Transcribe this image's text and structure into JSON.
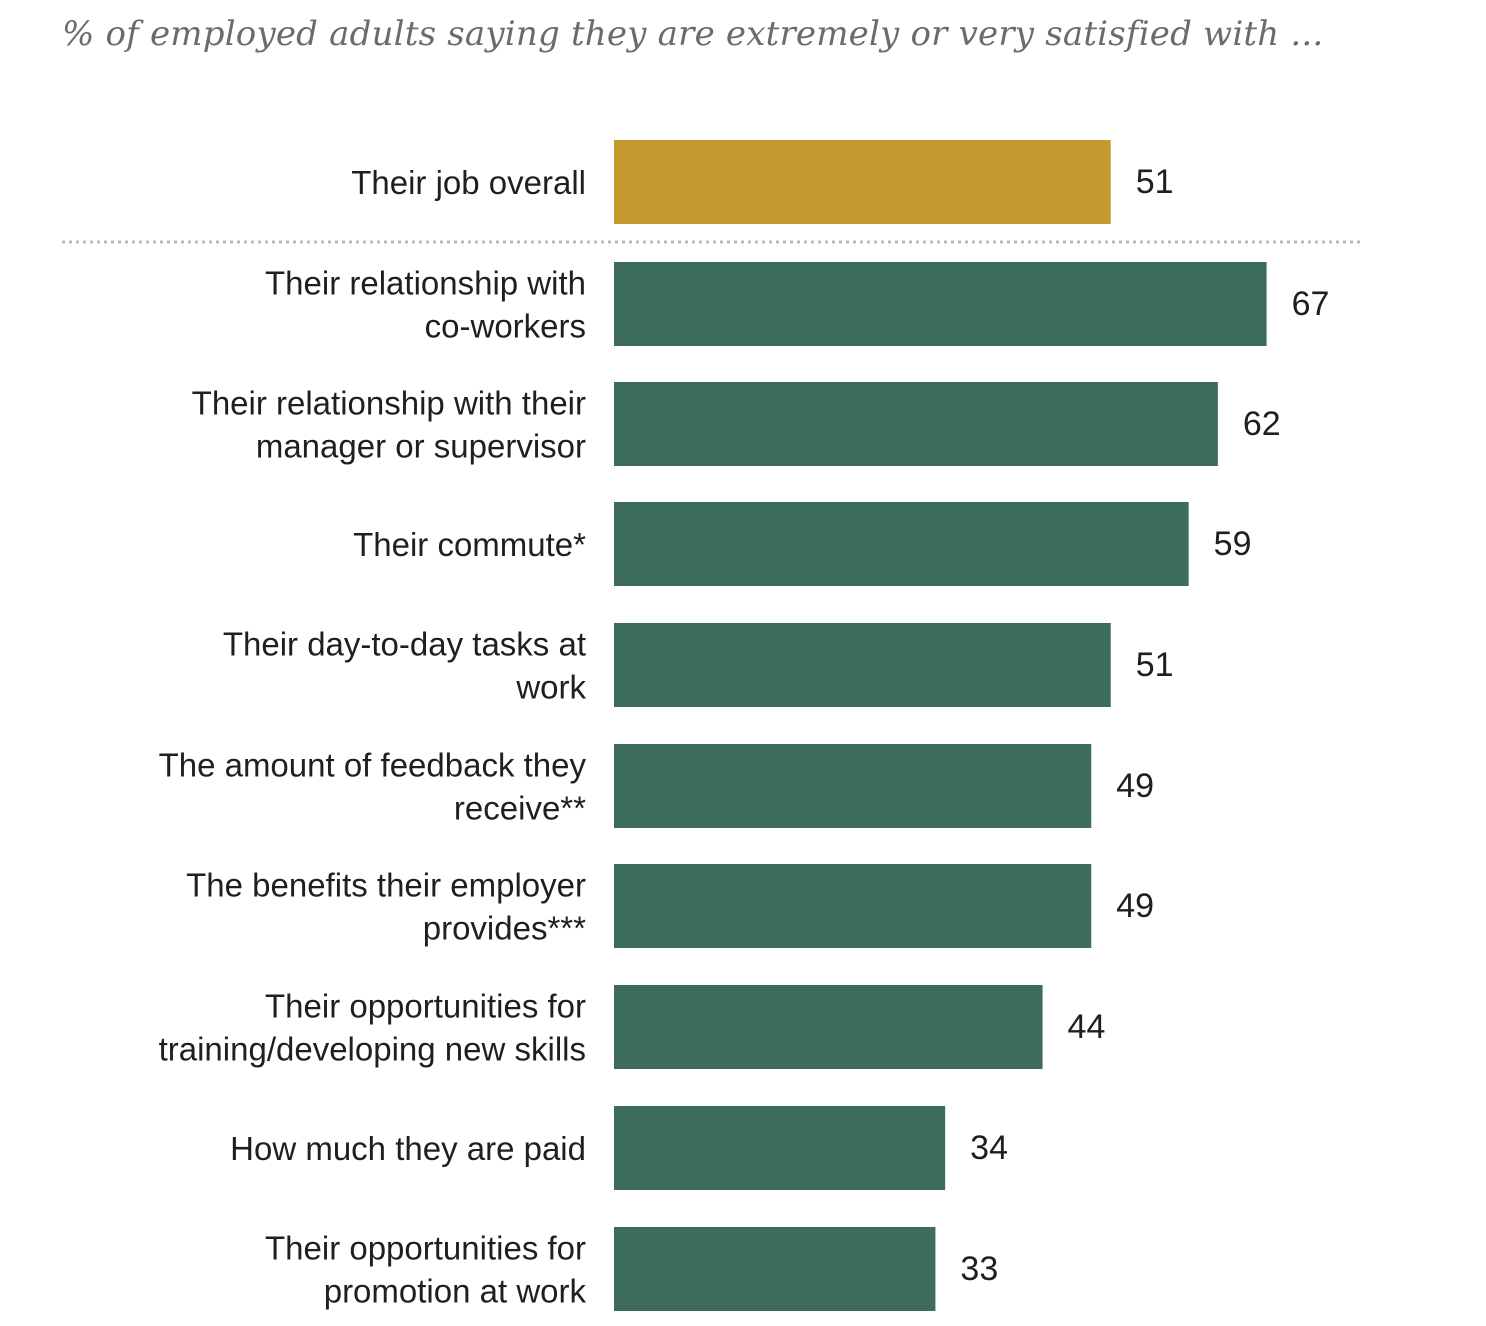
{
  "chart_data": {
    "type": "bar",
    "orientation": "horizontal",
    "subtitle": "% of employed adults saying they are extremely or very satisfied with ...",
    "categories": [
      [
        "Their job overall"
      ],
      [
        "Their relationship with",
        "co-workers"
      ],
      [
        "Their relationship with their",
        "manager or supervisor"
      ],
      [
        "Their commute*"
      ],
      [
        "Their day-to-day tasks at",
        "work"
      ],
      [
        "The amount of feedback they",
        "receive**"
      ],
      [
        "The benefits their employer",
        "provides***"
      ],
      [
        "Their opportunities for",
        "training/developing new skills"
      ],
      [
        "How much they are paid"
      ],
      [
        "Their opportunities for",
        "promotion at work"
      ]
    ],
    "values": [
      51,
      67,
      62,
      59,
      51,
      49,
      49,
      44,
      34,
      33
    ],
    "value_labels": [
      "51",
      "67",
      "62",
      "59",
      "51",
      "49",
      "49",
      "44",
      "34",
      "33"
    ],
    "highlight_index": 0,
    "separator_after_index": 0,
    "colors": {
      "highlight": "#c49a30",
      "bar": "#3d6b5c",
      "separator": "#bbbbbb"
    }
  }
}
